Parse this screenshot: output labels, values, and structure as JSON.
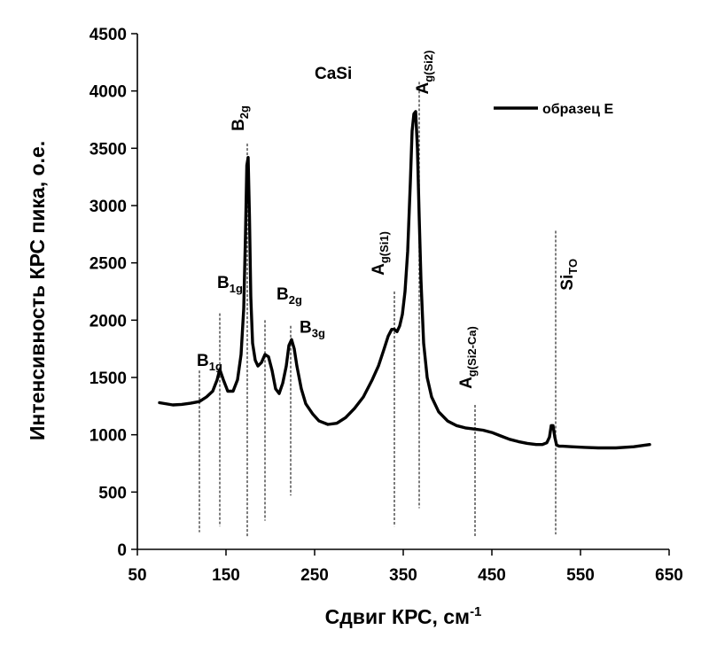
{
  "chart_data": {
    "type": "line",
    "title": "CaSi",
    "xlabel": "Сдвиг КРС, см",
    "xlabel_sup": "-1",
    "ylabel": "Интенсивность КРС пика, о.е.",
    "xlim": [
      50,
      650
    ],
    "ylim": [
      0,
      4500
    ],
    "xticks": [
      50,
      150,
      250,
      350,
      450,
      550,
      650
    ],
    "yticks": [
      0,
      500,
      1000,
      1500,
      2000,
      2500,
      3000,
      3500,
      4000,
      4500
    ],
    "legend": {
      "position": "top-right",
      "entries": [
        "образец Е"
      ]
    },
    "series": [
      {
        "name": "образец Е",
        "x": [
          75,
          90,
          100,
          110,
          120,
          128,
          135,
          140,
          143,
          147,
          152,
          158,
          163,
          167,
          170,
          172,
          173.5,
          175,
          176.5,
          178,
          180,
          183,
          186,
          190,
          194,
          198,
          202,
          206,
          210,
          214,
          218,
          221,
          224,
          227,
          230,
          235,
          240,
          248,
          255,
          265,
          275,
          285,
          295,
          305,
          315,
          322,
          328,
          333,
          337,
          340,
          343,
          346,
          349,
          352,
          355,
          358,
          360,
          362,
          364,
          366,
          368,
          370,
          373,
          377,
          382,
          390,
          400,
          410,
          420,
          430,
          440,
          450,
          460,
          470,
          480,
          490,
          500,
          507,
          512,
          515,
          517,
          519,
          521,
          523,
          526,
          530,
          540,
          555,
          570,
          590,
          610,
          628
        ],
        "y": [
          1280,
          1260,
          1265,
          1275,
          1290,
          1330,
          1380,
          1480,
          1570,
          1480,
          1380,
          1380,
          1480,
          1700,
          2100,
          2750,
          3350,
          3420,
          2900,
          2200,
          1800,
          1650,
          1600,
          1630,
          1700,
          1680,
          1560,
          1400,
          1360,
          1450,
          1600,
          1780,
          1830,
          1750,
          1600,
          1400,
          1270,
          1180,
          1120,
          1090,
          1100,
          1150,
          1230,
          1330,
          1480,
          1600,
          1740,
          1860,
          1920,
          1920,
          1900,
          1950,
          2050,
          2250,
          2600,
          3200,
          3650,
          3800,
          3820,
          3500,
          2900,
          2350,
          1800,
          1500,
          1330,
          1200,
          1120,
          1080,
          1060,
          1050,
          1040,
          1020,
          990,
          960,
          940,
          925,
          915,
          915,
          930,
          980,
          1080,
          1080,
          980,
          910,
          900,
          900,
          895,
          890,
          885,
          885,
          895,
          915
        ]
      }
    ],
    "annotations": [
      {
        "label": "B",
        "sub": "1g",
        "x": 120,
        "y_top": 1560,
        "y_bottom": 150,
        "label_x": 117,
        "label_y": 1600,
        "rotated": false
      },
      {
        "label": "B",
        "sub": "1g",
        "x": 143,
        "y_top": 2060,
        "y_bottom": 200,
        "label_x": 140,
        "label_y": 2280,
        "rotated": false
      },
      {
        "label": "B",
        "sub": "2g",
        "x": 174,
        "y_top": 3540,
        "y_bottom": 110,
        "label_x": 170,
        "label_y": 3650,
        "rotated": true
      },
      {
        "label": "B",
        "sub": "2g",
        "x": 194,
        "y_top": 2000,
        "y_bottom": 250,
        "label_x": 207,
        "label_y": 2180,
        "rotated": false
      },
      {
        "label": "B",
        "sub": "3g",
        "x": 223,
        "y_top": 1950,
        "y_bottom": 470,
        "label_x": 233,
        "label_y": 1890,
        "rotated": false
      },
      {
        "label": "A",
        "sub": "g(Si1)",
        "x": 340,
        "y_top": 2250,
        "y_bottom": 200,
        "label_x": 328,
        "label_y": 2390,
        "rotated": true
      },
      {
        "label": "A",
        "sub": "g(Si2)",
        "x": 368,
        "y_top": 4080,
        "y_bottom": 360,
        "label_x": 378,
        "label_y": 3970,
        "rotated": true
      },
      {
        "label": "A",
        "sub": "g(Si2-Ca)",
        "x": 431,
        "y_top": 1260,
        "y_bottom": 110,
        "label_x": 427,
        "label_y": 1400,
        "rotated": true
      },
      {
        "label": "Si",
        "sub": "TO",
        "x": 522,
        "y_top": 2780,
        "y_bottom": 130,
        "label_x": 541,
        "label_y": 2260,
        "rotated": true
      }
    ]
  }
}
